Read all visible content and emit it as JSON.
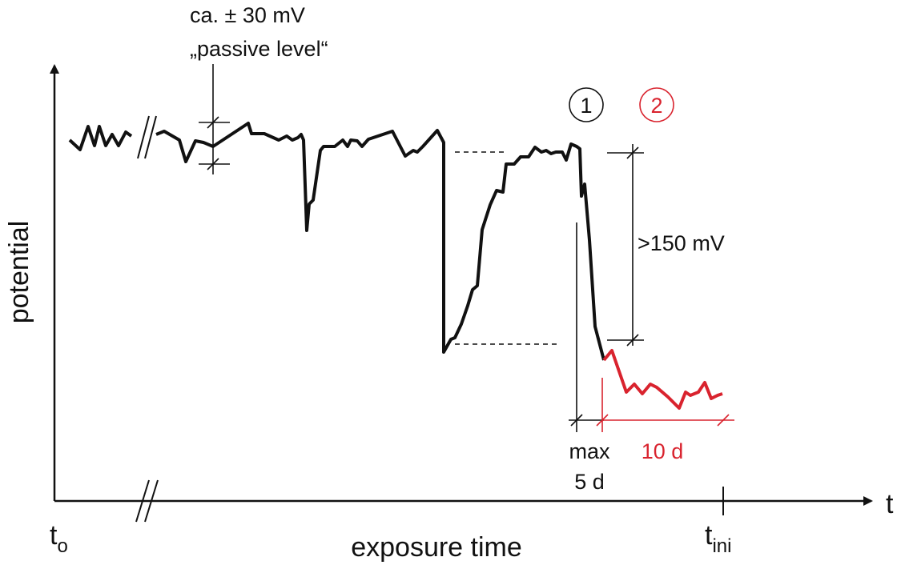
{
  "diagram": {
    "axes": {
      "y_label": "potential",
      "x_label": "exposure time",
      "x_axis_symbol": "t",
      "x_start_main": "t",
      "x_start_sub": "o",
      "x_end_main": "t",
      "x_end_sub": "ini"
    },
    "annotations": {
      "passive_range": "ca. ± 30 mV",
      "passive_level": "„passive level“",
      "drop": ">150 mV",
      "max_label": "max",
      "max_value": "5 d",
      "phase2_duration": "10 d"
    },
    "markers": [
      {
        "id": "1",
        "color": "#111111"
      },
      {
        "id": "2",
        "color": "#d9232e"
      }
    ],
    "colors": {
      "line": "#111111",
      "highlight": "#d9232e"
    }
  }
}
